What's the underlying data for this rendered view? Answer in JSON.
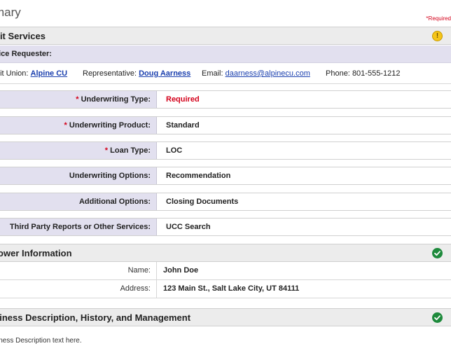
{
  "page": {
    "title": "mary",
    "required_note": "*Required"
  },
  "credit_services": {
    "header": "dit Services",
    "status_icon": "warning-icon",
    "status_color": "#f5c518",
    "requester_label": "vice Requester:",
    "requester": {
      "credit_union_label": "dit Union:",
      "credit_union": "Alpine CU",
      "representative_label": "Representative:",
      "representative": "Doug Aarness",
      "email_label": "Email:",
      "email": "daarness@alpinecu.com",
      "phone_label": "Phone:",
      "phone": "801-555-1212"
    },
    "fields": [
      {
        "label": "Underwriting Type:",
        "required": true,
        "star": "*",
        "value": "Required",
        "value_is_placeholder": true
      },
      {
        "label": "Underwriting Product:",
        "required": true,
        "star": "*",
        "value": "Standard"
      },
      {
        "label": "Loan Type:",
        "required": true,
        "star": "*",
        "value": "LOC"
      },
      {
        "label": "Underwriting Options:",
        "required": false,
        "value": "Recommendation"
      },
      {
        "label": "Additional Options:",
        "required": false,
        "value": "Closing Documents"
      },
      {
        "label": "Third Party Reports or Other Services:",
        "required": false,
        "value": "UCC Search"
      }
    ]
  },
  "borrower": {
    "header": "rower Information",
    "status_icon": "check-icon",
    "status_color": "#1e8a3c",
    "name_label": "Name:",
    "name": "John Doe",
    "address_label": "Address:",
    "address": "123 Main St., Salt Lake City, UT 84111"
  },
  "business": {
    "header": "siness Description, History, and Management",
    "status_icon": "check-icon",
    "status_color": "#1e8a3c",
    "description": "iness Description text here."
  }
}
